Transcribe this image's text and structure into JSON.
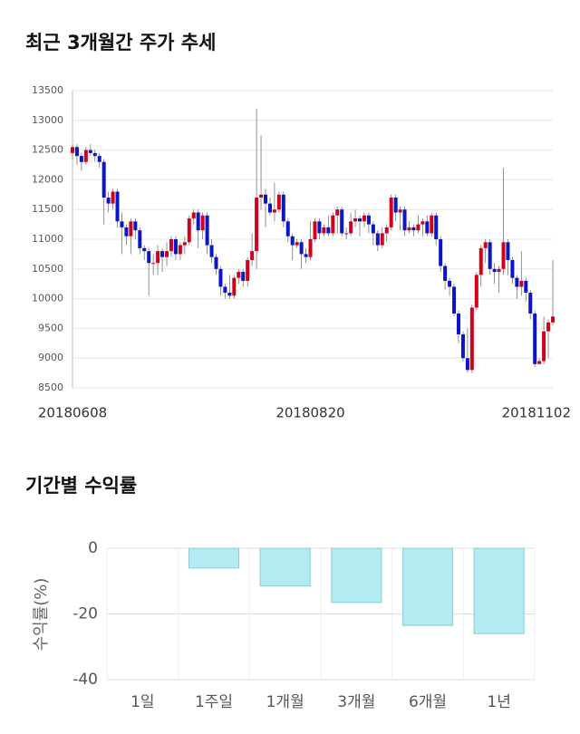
{
  "chart_data": [
    {
      "type": "candlestick",
      "title": "최근 3개월간 주가 추세",
      "categories": [
        "20180608",
        null,
        null,
        null,
        null,
        null,
        null,
        null,
        null,
        null,
        null,
        null,
        null,
        null,
        null,
        null,
        null,
        null,
        null,
        null,
        null,
        null,
        null,
        null,
        null,
        null,
        null,
        null,
        null,
        null,
        null,
        null,
        null,
        null,
        null,
        null,
        null,
        null,
        null,
        null,
        null,
        null,
        null,
        null,
        null,
        null,
        null,
        null,
        null,
        null,
        null,
        null,
        null,
        "20180820",
        null,
        null,
        null,
        null,
        null,
        null,
        null,
        null,
        null,
        null,
        null,
        null,
        null,
        null,
        null,
        null,
        null,
        null,
        null,
        null,
        null,
        null,
        null,
        null,
        null,
        null,
        null,
        null,
        null,
        null,
        null,
        null,
        null,
        null,
        null,
        null,
        null,
        null,
        null,
        null,
        null,
        null,
        null,
        null,
        null,
        null,
        null,
        null,
        null,
        null,
        null,
        null,
        null,
        "20181102"
      ],
      "open": [
        12450,
        12550,
        12400,
        12300,
        12500,
        12450,
        12400,
        12300,
        11700,
        11600,
        11800,
        11300,
        11200,
        11050,
        11300,
        11150,
        10850,
        10800,
        10600,
        10600,
        10800,
        10700,
        10800,
        11000,
        10750,
        10900,
        10950,
        11350,
        11450,
        11150,
        11400,
        10900,
        10700,
        10500,
        10200,
        10100,
        10050,
        10350,
        10450,
        10300,
        10650,
        10800,
        11700,
        11750,
        11600,
        11450,
        11500,
        11750,
        11300,
        11050,
        10900,
        10950,
        10750,
        10700,
        11000,
        11300,
        11100,
        11200,
        11100,
        11400,
        11500,
        11100,
        11100,
        11300,
        11350,
        11300,
        11400,
        11250,
        11100,
        10900,
        11100,
        11200,
        11700,
        11450,
        11500,
        11150,
        11200,
        11150,
        11250,
        11300,
        11100,
        11400,
        11000,
        10550,
        10300,
        10200,
        9750,
        9400,
        9000,
        8800,
        9850,
        10400,
        10850,
        10950,
        10500,
        10450,
        10500,
        10950,
        10650,
        10350,
        10200,
        10300,
        10100,
        9750,
        8900,
        8950,
        9450,
        9600
      ],
      "high": [
        12600,
        12600,
        12450,
        12550,
        12600,
        12500,
        12450,
        12350,
        11800,
        11850,
        11850,
        11450,
        11250,
        11350,
        11350,
        11200,
        10900,
        10850,
        10750,
        10900,
        10850,
        10950,
        11050,
        11050,
        10950,
        11050,
        11400,
        11500,
        11500,
        11450,
        11450,
        11000,
        10750,
        10550,
        10250,
        10400,
        10400,
        10500,
        10500,
        10700,
        11100,
        13200,
        12750,
        11850,
        11700,
        11950,
        11800,
        11800,
        11350,
        11100,
        11000,
        11000,
        10850,
        11300,
        11350,
        11350,
        11250,
        11400,
        11450,
        11550,
        11550,
        11200,
        11450,
        11500,
        11400,
        11450,
        11450,
        11300,
        11150,
        11200,
        11250,
        11750,
        11750,
        11550,
        11550,
        11300,
        11250,
        11400,
        11350,
        11400,
        11450,
        11450,
        11050,
        10600,
        10350,
        10250,
        9800,
        9450,
        9500,
        9900,
        10450,
        10900,
        11000,
        11000,
        10600,
        10550,
        12200,
        11000,
        10700,
        10400,
        10800,
        10350,
        10150,
        9800,
        9000,
        9700,
        9650,
        10650
      ],
      "low": [
        12350,
        12250,
        12150,
        12250,
        12400,
        12300,
        12200,
        11250,
        11450,
        11500,
        11200,
        10750,
        10900,
        10750,
        11000,
        10750,
        10650,
        10050,
        10400,
        10400,
        10450,
        10550,
        10700,
        10650,
        10650,
        10750,
        10900,
        11250,
        10850,
        11000,
        10750,
        10600,
        10400,
        10050,
        10000,
        10000,
        10000,
        10250,
        10200,
        10200,
        10550,
        10500,
        11500,
        11200,
        11400,
        11300,
        11450,
        11200,
        10950,
        10650,
        10850,
        10500,
        10600,
        10650,
        10950,
        11000,
        11050,
        11050,
        11050,
        11100,
        11050,
        11000,
        11050,
        11200,
        11050,
        11200,
        11100,
        10900,
        10800,
        10850,
        10950,
        11150,
        11300,
        11150,
        11050,
        11100,
        11050,
        11100,
        11050,
        11050,
        11050,
        10900,
        10450,
        10150,
        10050,
        9700,
        9250,
        8950,
        8750,
        8750,
        9800,
        10200,
        10600,
        10400,
        10250,
        10100,
        10400,
        10400,
        10250,
        10000,
        10050,
        9950,
        9650,
        8850,
        8900,
        8900,
        9000,
        9550
      ],
      "close": [
        12550,
        12400,
        12300,
        12500,
        12450,
        12400,
        12300,
        11700,
        11600,
        11800,
        11300,
        11200,
        11050,
        11300,
        11150,
        10850,
        10800,
        10600,
        10600,
        10800,
        10700,
        10800,
        11000,
        10750,
        10900,
        10950,
        11350,
        11450,
        11150,
        11400,
        10900,
        10700,
        10500,
        10200,
        10100,
        10050,
        10350,
        10450,
        10300,
        10650,
        10800,
        11700,
        11750,
        11600,
        11450,
        11500,
        11750,
        11300,
        11050,
        10900,
        10950,
        10750,
        10700,
        11000,
        11300,
        11100,
        11200,
        11100,
        11400,
        11500,
        11100,
        11100,
        11300,
        11350,
        11300,
        11400,
        11250,
        11100,
        10900,
        11100,
        11200,
        11700,
        11450,
        11500,
        11150,
        11200,
        11150,
        11250,
        11300,
        11100,
        11400,
        11000,
        10550,
        10300,
        10200,
        9750,
        9400,
        9000,
        8800,
        9850,
        10400,
        10850,
        10950,
        10500,
        10450,
        10500,
        10950,
        10650,
        10350,
        10200,
        10300,
        10100,
        9750,
        8900,
        8950,
        9450,
        9600,
        9700
      ],
      "up_color": "#d0021b",
      "down_color": "#0a14c8",
      "ylim": [
        8500,
        13500
      ],
      "yticks": [
        8500,
        9000,
        9500,
        10000,
        10500,
        11000,
        11500,
        12000,
        12500,
        13000,
        13500
      ],
      "grid": true
    },
    {
      "type": "bar",
      "title": "기간별 수익률",
      "ylabel": "수익률(%)",
      "categories": [
        "1일",
        "1주일",
        "1개월",
        "3개월",
        "6개월",
        "1년"
      ],
      "values": [
        0,
        -6,
        -11.5,
        -16.5,
        -23.5,
        -26
      ],
      "color": "#b2ebf2",
      "edge_color": "#8ccbd6",
      "ylim": [
        -40,
        0
      ],
      "yticks": [
        0,
        -20,
        -40
      ],
      "grid": true
    }
  ]
}
